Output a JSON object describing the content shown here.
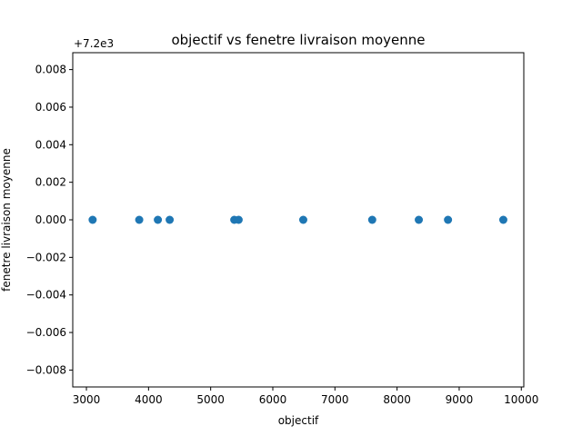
{
  "chart_data": {
    "type": "scatter",
    "title": "objectif   vs   fenetre livraison moyenne",
    "xlabel": "objectif",
    "ylabel": "fenetre livraison moyenne",
    "y_offset_label": "+7.2e3",
    "y_offset": 7200,
    "xlim": [
      2780,
      10040
    ],
    "ylim": [
      -0.0089,
      0.0089
    ],
    "xticks": [
      3000,
      4000,
      5000,
      6000,
      7000,
      8000,
      9000,
      10000
    ],
    "xtick_labels": [
      "3000",
      "4000",
      "5000",
      "6000",
      "7000",
      "8000",
      "9000",
      "10000"
    ],
    "yticks": [
      0.008,
      0.006,
      0.004,
      0.002,
      0.0,
      -0.002,
      -0.004,
      -0.006,
      -0.008
    ],
    "ytick_labels": [
      "0.008",
      "0.006",
      "0.004",
      "0.002",
      "0.000",
      "−0.002",
      "−0.004",
      "−0.006",
      "−0.008"
    ],
    "grid": false,
    "marker_color": "#1f77b4",
    "points": [
      {
        "x": 3100,
        "y": 7200
      },
      {
        "x": 3850,
        "y": 7200
      },
      {
        "x": 4150,
        "y": 7200
      },
      {
        "x": 4340,
        "y": 7200
      },
      {
        "x": 5380,
        "y": 7200
      },
      {
        "x": 5450,
        "y": 7200
      },
      {
        "x": 6490,
        "y": 7200
      },
      {
        "x": 7600,
        "y": 7200
      },
      {
        "x": 8350,
        "y": 7200
      },
      {
        "x": 8820,
        "y": 7200
      },
      {
        "x": 9710,
        "y": 7200
      }
    ]
  }
}
